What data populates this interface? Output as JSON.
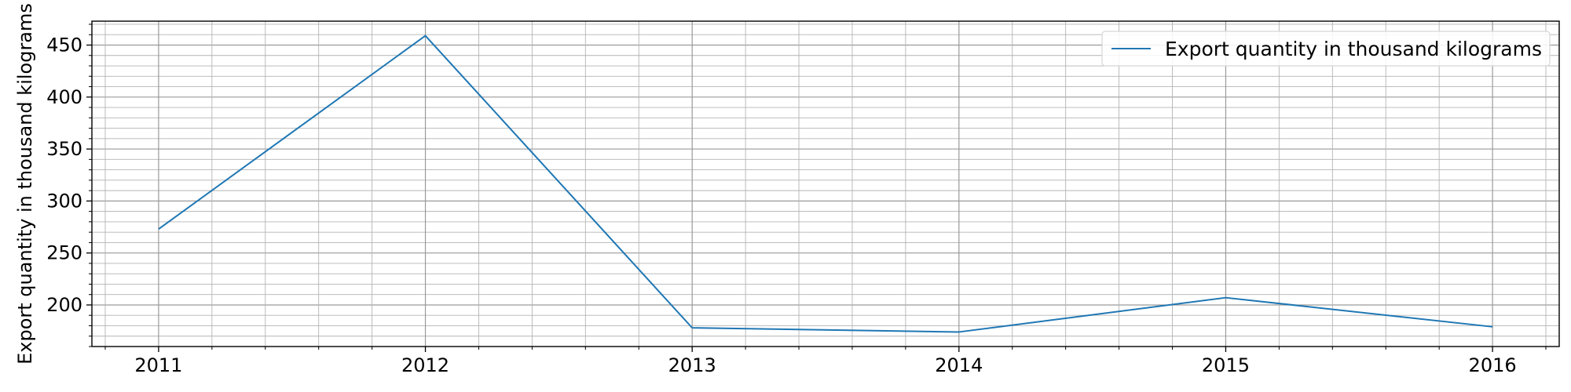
{
  "chart_data": {
    "type": "line",
    "x": [
      2011,
      2012,
      2013,
      2014,
      2015,
      2016
    ],
    "x_ticks": [
      "2011",
      "2012",
      "2013",
      "2014",
      "2015",
      "2016"
    ],
    "series": [
      {
        "name": "Export quantity in thousand kilograms",
        "values": [
          273,
          459,
          178,
          174,
          207,
          179
        ],
        "color": "#1f77b4"
      }
    ],
    "ylabel": "Export quantity in thousand kilograms",
    "xlabel": "",
    "xlim": [
      2010.75,
      2016.25
    ],
    "ylim": [
      160,
      473
    ],
    "y_ticks": [
      200,
      250,
      300,
      350,
      400,
      450
    ],
    "grid": true,
    "minor_grid": true,
    "legend_position": "top-right"
  }
}
